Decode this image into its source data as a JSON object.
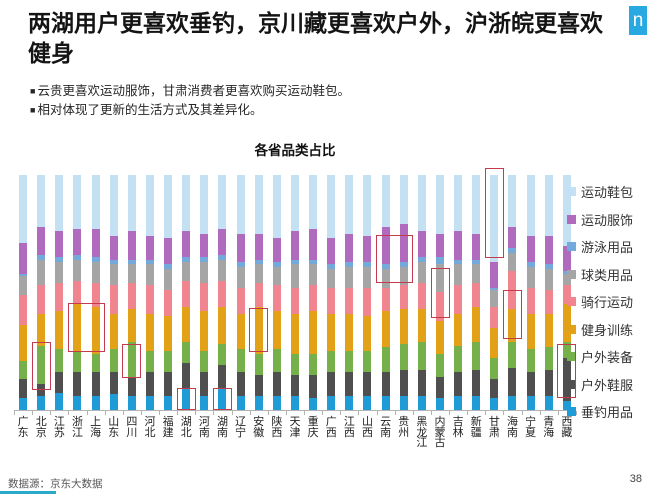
{
  "header": {
    "title": "两湖用户更喜欢垂钓，京川藏更喜欢户外，沪浙皖更喜欢健身",
    "logo_letter": "n",
    "logo_color": "#29A9E1"
  },
  "bullets": {
    "marker": "■",
    "items": [
      "云贵更喜欢运动服饰，甘肃消费者更喜欢购买运动鞋包。",
      "相对体现了更新的生活方式及其差异化。"
    ]
  },
  "chart_data": {
    "type": "bar",
    "variant": "stacked-percent-column",
    "title": "各省品类占比",
    "legend_position": "right",
    "grid": false,
    "ylim": [
      0,
      100
    ],
    "unit": "percent",
    "categories": [
      "广东",
      "北京",
      "江苏",
      "浙江",
      "上海",
      "山东",
      "四川",
      "河北",
      "福建",
      "湖北",
      "河南",
      "湖南",
      "辽宁",
      "安徽",
      "陕西",
      "天津",
      "重庆",
      "广西",
      "江西",
      "山西",
      "云南",
      "贵州",
      "黑龙江",
      "内蒙古",
      "吉林",
      "新疆",
      "甘肃",
      "海南",
      "宁夏",
      "青海",
      "西藏"
    ],
    "series": [
      {
        "name": "运动鞋包",
        "color": "#C3E1F2",
        "values": [
          29,
          22,
          24,
          23,
          23,
          26,
          24,
          26,
          27,
          24,
          25,
          23,
          25,
          25,
          27,
          24,
          23,
          27,
          25,
          26,
          22,
          21,
          24,
          25,
          24,
          25,
          37,
          22,
          26,
          26,
          30
        ]
      },
      {
        "name": "运动服饰",
        "color": "#B16BBE",
        "values": [
          13,
          12,
          11,
          11,
          12,
          10,
          12,
          10,
          11,
          11,
          10,
          11,
          12,
          11,
          10,
          12,
          13,
          11,
          12,
          11,
          16,
          16,
          11,
          10,
          12,
          11,
          11,
          9,
          11,
          12,
          11
        ]
      },
      {
        "name": "游泳用品",
        "color": "#74A9DB",
        "values": [
          1,
          2,
          2,
          2,
          2,
          2,
          2,
          2,
          2,
          2,
          2,
          2,
          2,
          2,
          2,
          2,
          2,
          2,
          2,
          2,
          2,
          2,
          2,
          3,
          2,
          2,
          1,
          2,
          2,
          2,
          1
        ]
      },
      {
        "name": "球类用品",
        "color": "#A5A5A5",
        "values": [
          8,
          11,
          9,
          9,
          9,
          9,
          8,
          9,
          9,
          8,
          9,
          9,
          9,
          8,
          8,
          10,
          9,
          8,
          9,
          9,
          8,
          8,
          9,
          12,
          9,
          8,
          7,
          8,
          9,
          9,
          5
        ]
      },
      {
        "name": "骑行运动",
        "color": "#F0848F",
        "values": [
          13,
          12,
          12,
          10,
          10,
          12,
          11,
          12,
          11,
          11,
          12,
          11,
          11,
          10,
          11,
          11,
          11,
          11,
          11,
          12,
          10,
          10,
          11,
          12,
          12,
          10,
          9,
          16,
          11,
          10,
          8
        ]
      },
      {
        "name": "健身训练",
        "color": "#E2A117",
        "values": [
          15,
          14,
          16,
          20,
          20,
          15,
          14,
          16,
          15,
          15,
          17,
          16,
          15,
          20,
          16,
          17,
          18,
          16,
          16,
          15,
          15,
          15,
          14,
          14,
          14,
          15,
          13,
          14,
          15,
          14,
          16
        ]
      },
      {
        "name": "户外装备",
        "color": "#75B04A",
        "values": [
          8,
          16,
          10,
          9,
          8,
          10,
          15,
          9,
          9,
          9,
          9,
          9,
          10,
          9,
          10,
          9,
          9,
          9,
          9,
          9,
          11,
          11,
          12,
          10,
          11,
          12,
          9,
          11,
          10,
          10,
          7
        ]
      },
      {
        "name": "户外鞋服",
        "color": "#4F4F4F",
        "values": [
          8,
          5,
          9,
          10,
          10,
          9,
          8,
          10,
          10,
          11,
          10,
          10,
          10,
          9,
          10,
          9,
          10,
          10,
          10,
          10,
          10,
          11,
          11,
          9,
          10,
          11,
          8,
          12,
          10,
          11,
          18
        ]
      },
      {
        "name": "垂钓用品",
        "color": "#1F9CD8",
        "values": [
          5,
          6,
          7,
          6,
          6,
          7,
          6,
          6,
          6,
          9,
          6,
          9,
          6,
          6,
          6,
          6,
          5,
          6,
          6,
          6,
          6,
          6,
          6,
          5,
          6,
          6,
          5,
          6,
          6,
          6,
          4
        ]
      }
    ]
  },
  "highlight_color": "#C43B4E",
  "highlights": [
    {
      "start": "北京",
      "end": "北京",
      "top_pct": 71,
      "bottom_pct": 91.5
    },
    {
      "start": "浙江",
      "end": "上海",
      "top_pct": 54.5,
      "bottom_pct": 75.5
    },
    {
      "start": "四川",
      "end": "四川",
      "top_pct": 72,
      "bottom_pct": 86.5
    },
    {
      "start": "湖北",
      "end": "湖北",
      "top_pct": 90.5,
      "bottom_pct": 100
    },
    {
      "start": "湖南",
      "end": "湖南",
      "top_pct": 90.5,
      "bottom_pct": 100
    },
    {
      "start": "安徽",
      "end": "安徽",
      "top_pct": 56.5,
      "bottom_pct": 75.5
    },
    {
      "start": "云南",
      "end": "贵州",
      "top_pct": 25.5,
      "bottom_pct": 46
    },
    {
      "start": "内蒙古",
      "end": "内蒙古",
      "top_pct": 39.5,
      "bottom_pct": 61
    },
    {
      "start": "甘肃",
      "end": "甘肃",
      "top_pct": -3,
      "bottom_pct": 35.5
    },
    {
      "start": "海南",
      "end": "海南",
      "top_pct": 49,
      "bottom_pct": 70
    },
    {
      "start": "西藏",
      "end": "西藏",
      "top_pct": 72,
      "bottom_pct": 95
    }
  ],
  "footer": {
    "source": "数据源：京东大数据",
    "page_number": "38",
    "accent_color": "#2CA8C9"
  }
}
